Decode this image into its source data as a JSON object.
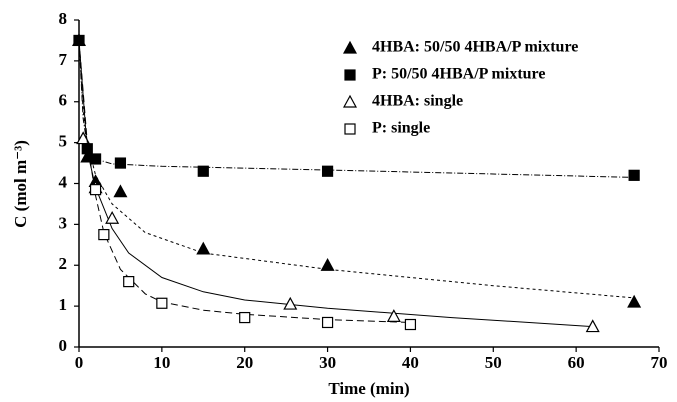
{
  "chart_data": {
    "type": "scatter",
    "xlabel": "Time (min)",
    "ylabel": "C (mol m⁻³)",
    "xlim": [
      0,
      70
    ],
    "xticks": [
      0,
      10,
      20,
      30,
      40,
      50,
      60,
      70
    ],
    "ylim": [
      0,
      8
    ],
    "yticks": [
      0,
      1,
      2,
      3,
      4,
      5,
      6,
      7,
      8
    ],
    "legend": "upper right",
    "series": [
      {
        "name": "4HBA: 50/50 4HBA/P mixture",
        "color": "#000000",
        "marker": "triangle",
        "filled": true,
        "x": [
          0,
          1,
          2,
          5,
          15,
          30,
          67
        ],
        "values": [
          7.5,
          4.65,
          4.05,
          3.8,
          2.4,
          2.0,
          1.1
        ],
        "fit": {
          "dash": "3,3",
          "x": [
            0,
            0.5,
            1,
            2,
            4,
            8,
            15,
            30,
            50,
            67
          ],
          "values": [
            7.5,
            5.8,
            5.0,
            4.2,
            3.5,
            2.8,
            2.3,
            1.9,
            1.5,
            1.2
          ]
        }
      },
      {
        "name": "P: 50/50 4HBA/P mixture",
        "color": "#000000",
        "marker": "square",
        "filled": true,
        "x": [
          0,
          1,
          2,
          5,
          15,
          30,
          67
        ],
        "values": [
          7.5,
          4.85,
          4.6,
          4.5,
          4.3,
          4.3,
          4.2
        ],
        "fit": {
          "dash": "6,2,1,2",
          "x": [
            0,
            0.5,
            1,
            2,
            4,
            10,
            30,
            67
          ],
          "values": [
            7.5,
            5.6,
            4.9,
            4.6,
            4.48,
            4.42,
            4.33,
            4.15
          ]
        }
      },
      {
        "name": "4HBA: single",
        "color": "#000000",
        "marker": "triangle",
        "filled": false,
        "x": [
          0.5,
          2,
          4,
          25.5,
          38,
          62
        ],
        "values": [
          5.1,
          3.9,
          3.15,
          1.05,
          0.75,
          0.5
        ],
        "fit": {
          "dash": "none",
          "x": [
            0,
            1,
            2,
            4,
            6,
            10,
            15,
            20,
            30,
            45,
            62
          ],
          "values": [
            7.5,
            4.8,
            3.9,
            2.9,
            2.3,
            1.7,
            1.35,
            1.15,
            0.95,
            0.72,
            0.5
          ]
        }
      },
      {
        "name": "P: single",
        "color": "#000000",
        "marker": "square",
        "filled": false,
        "x": [
          2,
          3,
          6,
          10,
          20,
          30,
          40
        ],
        "values": [
          3.85,
          2.75,
          1.6,
          1.07,
          0.72,
          0.6,
          0.55
        ],
        "fit": {
          "dash": "7,4",
          "x": [
            0,
            1,
            2,
            3,
            5,
            8,
            10,
            15,
            20,
            30,
            40
          ],
          "values": [
            7.5,
            5.0,
            3.7,
            2.8,
            1.9,
            1.3,
            1.1,
            0.9,
            0.8,
            0.67,
            0.6
          ]
        }
      }
    ]
  }
}
